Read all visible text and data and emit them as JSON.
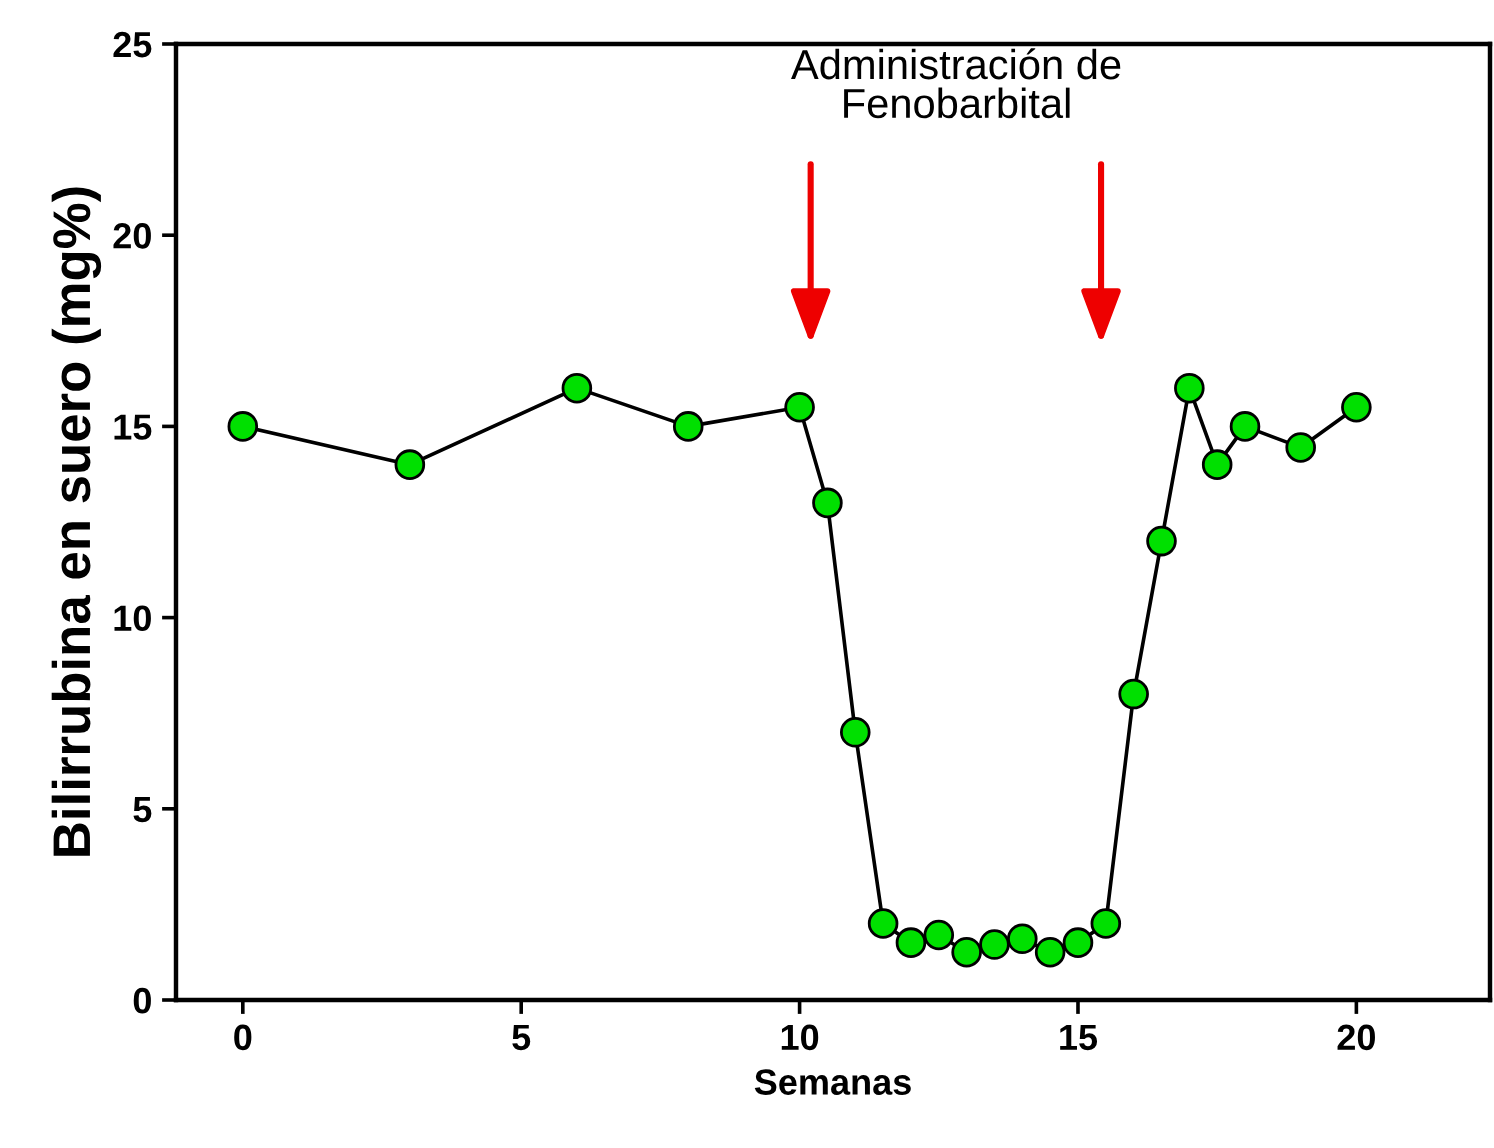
{
  "chart_data": {
    "type": "line",
    "xlabel": "Semanas",
    "ylabel": "Bilirrubina en suero (mg%)",
    "x": [
      0,
      3,
      6,
      8,
      10,
      10.5,
      11,
      11.5,
      12,
      12.5,
      13,
      13.5,
      14,
      14.5,
      15,
      15.5,
      16,
      16.5,
      17,
      17.5,
      18,
      19,
      20
    ],
    "series": [
      {
        "color": "#00e000",
        "values": [
          15,
          14,
          16,
          15,
          15.5,
          13,
          7,
          2,
          1.5,
          1.7,
          1.25,
          1.45,
          1.6,
          1.25,
          1.5,
          2,
          8,
          12,
          16,
          14,
          15,
          14.45,
          15.5
        ]
      }
    ],
    "xlim": [
      -1.2,
      22.4
    ],
    "ylim": [
      0,
      25
    ],
    "xticks": [
      0,
      5,
      10,
      15,
      20
    ],
    "yticks": [
      0,
      5,
      10,
      15,
      20,
      25
    ],
    "marker": "circle",
    "line_style": "solid",
    "grid": false,
    "legend": false,
    "annotations": [
      "Administración de\nFenobarbital"
    ]
  }
}
